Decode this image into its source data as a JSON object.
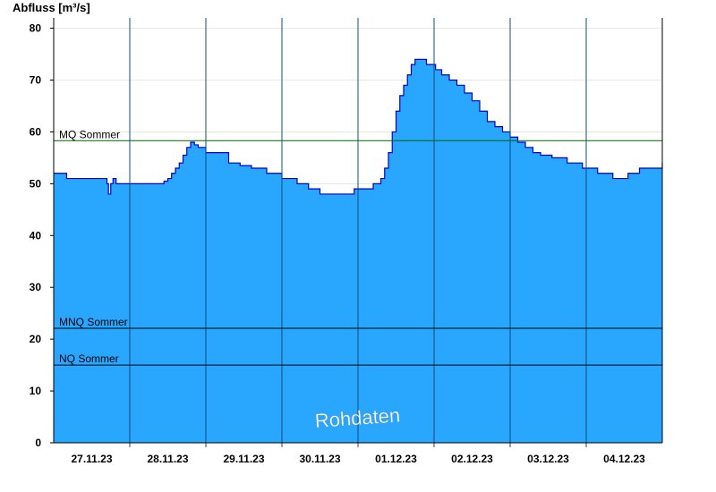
{
  "chart_data": {
    "type": "area",
    "ylabel": "Abfluss [m³/s]",
    "ylim": [
      0,
      82
    ],
    "yticks": [
      0,
      10,
      20,
      30,
      40,
      50,
      60,
      70,
      80
    ],
    "xlim": [
      0,
      8
    ],
    "day_labels": [
      "27.11.23",
      "28.11.23",
      "29.11.23",
      "30.11.23",
      "01.12.23",
      "02.12.23",
      "03.12.23",
      "04.12.23"
    ],
    "series": [
      {
        "x": [
          0,
          0.15,
          0.17,
          0.68,
          0.7,
          0.72,
          0.75,
          0.78,
          0.82,
          1.4,
          1.45,
          1.5,
          1.55,
          1.6,
          1.65,
          1.7,
          1.75,
          1.8,
          1.85,
          1.9,
          2.0,
          2.1,
          2.3,
          2.45,
          2.6,
          2.75,
          2.8,
          3.0,
          3.2,
          3.35,
          3.5,
          3.75,
          3.95,
          4.0,
          4.2,
          4.3,
          4.35,
          4.4,
          4.45,
          4.5,
          4.55,
          4.6,
          4.65,
          4.7,
          4.75,
          4.8,
          4.9,
          4.95,
          5.02,
          5.1,
          5.2,
          5.3,
          5.4,
          5.5,
          5.6,
          5.7,
          5.8,
          5.9,
          6.0,
          6.1,
          6.2,
          6.3,
          6.4,
          6.55,
          6.75,
          6.95,
          7.15,
          7.35,
          7.45,
          7.55,
          7.7,
          8.0
        ],
        "y": [
          52,
          52,
          51,
          51,
          50,
          48,
          50,
          51,
          50,
          50,
          50.5,
          51,
          52,
          53,
          54,
          55.5,
          57,
          58,
          57.5,
          57,
          56,
          56,
          54,
          53.5,
          53,
          53,
          52,
          51,
          50,
          49,
          48,
          48,
          49,
          49,
          50,
          51,
          53,
          56,
          60,
          64,
          67,
          69,
          71,
          73,
          74,
          74,
          73,
          73,
          72,
          71,
          70,
          69,
          67.5,
          66,
          64,
          62,
          61,
          60,
          59,
          58,
          57,
          56,
          55.5,
          55,
          54,
          53,
          52,
          51,
          51,
          52,
          53,
          54
        ]
      }
    ],
    "reference_lines": [
      {
        "label": "MQ Sommer",
        "value": 58.3,
        "color": "#006400"
      },
      {
        "label": "MNQ Sommer",
        "value": 22.1,
        "color": "#000000"
      },
      {
        "label": "NQ Sommer",
        "value": 15.0,
        "color": "#000000"
      }
    ],
    "watermark": "Rohdaten",
    "colors": {
      "fill": "#29a7ff",
      "line": "#0000cc",
      "axis": "#000000"
    }
  }
}
